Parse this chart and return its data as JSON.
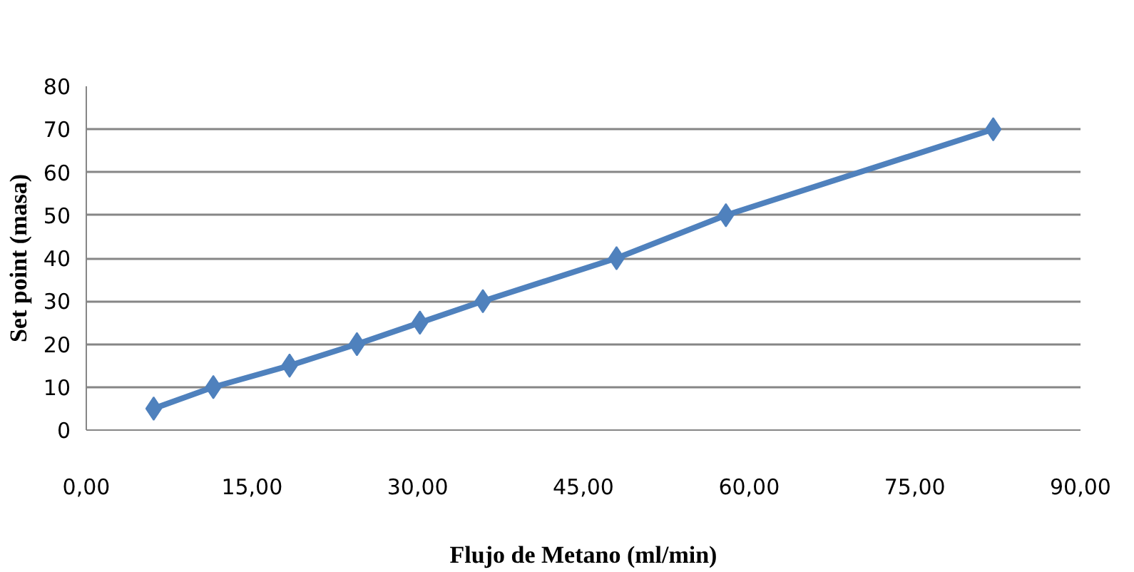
{
  "chart_data": {
    "type": "line",
    "xlabel": "Flujo de Metano (ml/min)",
    "ylabel": "Set point (masa)",
    "x": [
      6.1,
      11.5,
      18.4,
      24.5,
      30.2,
      35.9,
      48.0,
      57.9,
      82.1
    ],
    "series": [
      {
        "color": "#4f81bd",
        "values": [
          5,
          10,
          15,
          20,
          25,
          30,
          40,
          50,
          70
        ]
      }
    ],
    "xlim": [
      0,
      90
    ],
    "ylim": [
      0,
      80
    ],
    "xticks": [
      {
        "value": 0,
        "label": "0,00"
      },
      {
        "value": 15,
        "label": "15,00"
      },
      {
        "value": 30,
        "label": "30,00"
      },
      {
        "value": 45,
        "label": "45,00"
      },
      {
        "value": 60,
        "label": "60,00"
      },
      {
        "value": 75,
        "label": "75,00"
      },
      {
        "value": 90,
        "label": "90,00"
      }
    ],
    "yticks": [
      0,
      10,
      20,
      30,
      40,
      50,
      60,
      70,
      80
    ],
    "grid": "y",
    "marker": "diamond",
    "line_style": "solid"
  }
}
